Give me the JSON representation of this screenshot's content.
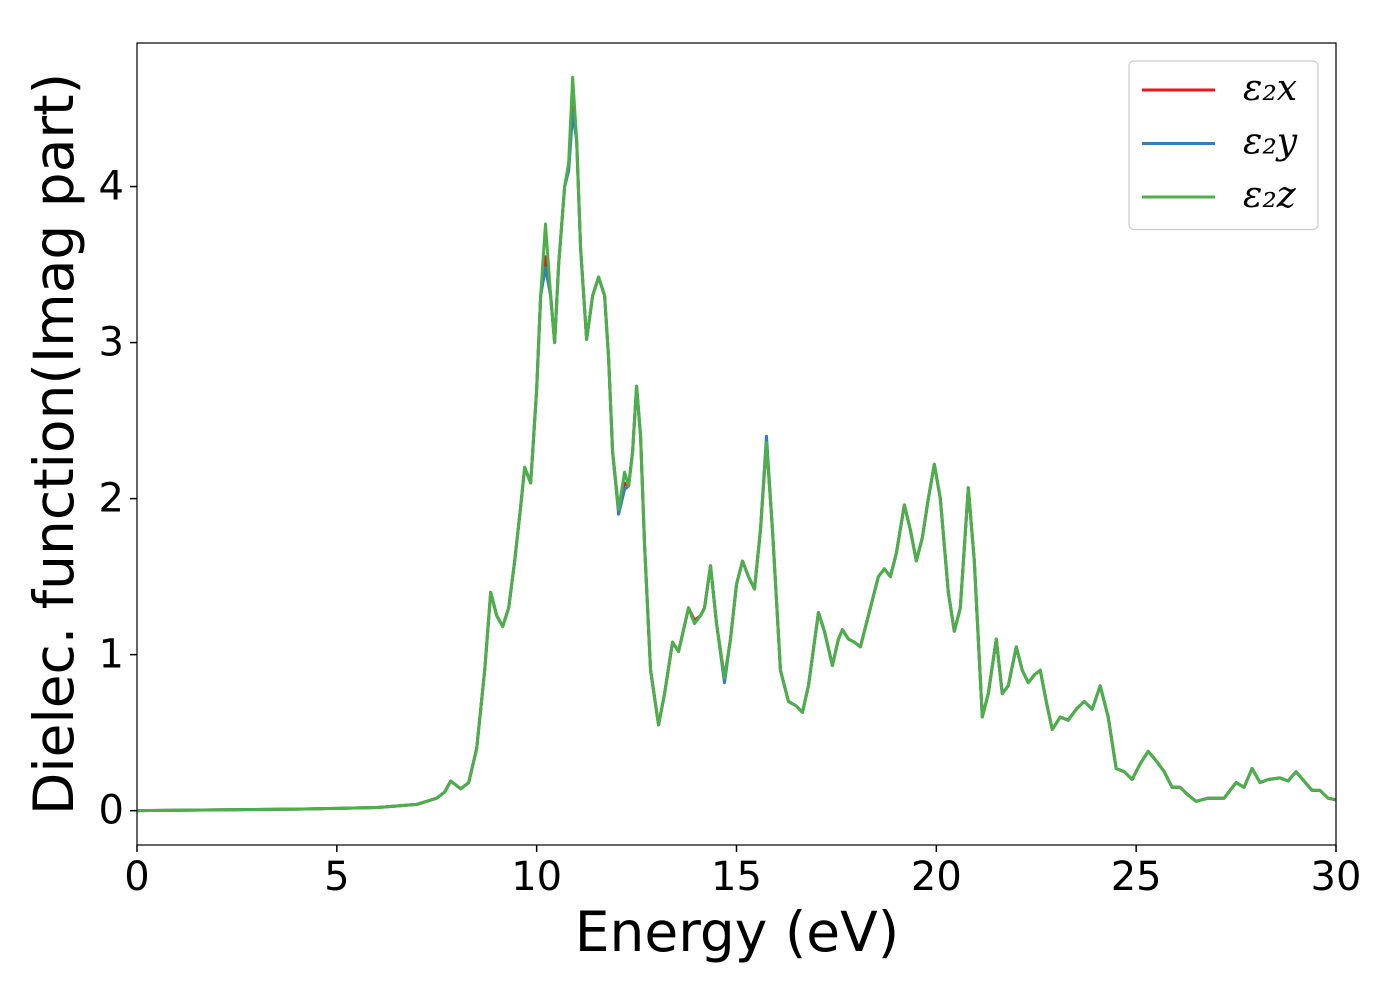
{
  "chart_data": {
    "type": "line",
    "xlabel": "Energy (eV)",
    "ylabel": "Dielec. function(Imag part)",
    "xlim": [
      0,
      30
    ],
    "ylim": [
      -0.22,
      4.92
    ],
    "xticks": [
      0,
      5,
      10,
      15,
      20,
      25,
      30
    ],
    "yticks": [
      0,
      1,
      2,
      3,
      4
    ],
    "grid": false,
    "legend": "upper right",
    "x": [
      0,
      2,
      4,
      5,
      6,
      6.5,
      7,
      7.5,
      7.7,
      7.85,
      8,
      8.1,
      8.3,
      8.5,
      8.7,
      8.85,
      9,
      9.15,
      9.3,
      9.45,
      9.6,
      9.7,
      9.85,
      10,
      10.1,
      10.22,
      10.35,
      10.45,
      10.55,
      10.7,
      10.8,
      10.9,
      11,
      11.1,
      11.25,
      11.4,
      11.55,
      11.7,
      11.8,
      11.9,
      12.05,
      12.2,
      12.3,
      12.4,
      12.5,
      12.6,
      12.7,
      12.85,
      13.05,
      13.2,
      13.4,
      13.55,
      13.8,
      13.95,
      14.1,
      14.2,
      14.35,
      14.5,
      14.7,
      14.85,
      15,
      15.15,
      15.3,
      15.45,
      15.6,
      15.75,
      15.9,
      16.1,
      16.3,
      16.5,
      16.65,
      16.8,
      17.05,
      17.2,
      17.4,
      17.55,
      17.65,
      17.8,
      17.95,
      18.1,
      18.3,
      18.55,
      18.7,
      18.85,
      19,
      19.2,
      19.35,
      19.5,
      19.65,
      19.8,
      19.95,
      20.1,
      20.3,
      20.45,
      20.6,
      20.8,
      20.95,
      21.15,
      21.3,
      21.5,
      21.65,
      21.8,
      22,
      22.15,
      22.3,
      22.45,
      22.6,
      22.75,
      22.9,
      23.1,
      23.3,
      23.5,
      23.7,
      23.9,
      24.1,
      24.3,
      24.5,
      24.7,
      24.9,
      25.1,
      25.3,
      25.5,
      25.7,
      25.9,
      26.1,
      26.3,
      26.5,
      26.8,
      27.2,
      27.5,
      27.7,
      27.9,
      28.1,
      28.3,
      28.6,
      28.8,
      29,
      29.2,
      29.4,
      29.6,
      29.8,
      30
    ],
    "series": [
      {
        "name": "ε₂x",
        "color": "#e41a1c",
        "values": [
          0,
          0.005,
          0.01,
          0.015,
          0.02,
          0.03,
          0.04,
          0.08,
          0.12,
          0.19,
          0.16,
          0.14,
          0.18,
          0.4,
          0.9,
          1.4,
          1.25,
          1.18,
          1.3,
          1.6,
          1.95,
          2.2,
          2.1,
          2.7,
          3.3,
          3.55,
          3.3,
          3.0,
          3.5,
          4.0,
          4.12,
          4.52,
          4.3,
          3.6,
          3.02,
          3.3,
          3.42,
          3.3,
          2.9,
          2.3,
          1.93,
          2.1,
          2.08,
          2.3,
          2.72,
          2.4,
          1.7,
          0.9,
          0.55,
          0.75,
          1.08,
          1.02,
          1.3,
          1.22,
          1.25,
          1.3,
          1.57,
          1.2,
          0.85,
          1.1,
          1.45,
          1.6,
          1.5,
          1.42,
          1.8,
          2.36,
          1.8,
          0.9,
          0.7,
          0.67,
          0.63,
          0.8,
          1.27,
          1.15,
          0.93,
          1.1,
          1.16,
          1.1,
          1.08,
          1.05,
          1.25,
          1.5,
          1.55,
          1.5,
          1.65,
          1.96,
          1.8,
          1.6,
          1.75,
          2.0,
          2.22,
          2.0,
          1.4,
          1.15,
          1.3,
          2.07,
          1.6,
          0.6,
          0.75,
          1.1,
          0.75,
          0.8,
          1.05,
          0.9,
          0.82,
          0.87,
          0.9,
          0.7,
          0.52,
          0.6,
          0.58,
          0.65,
          0.7,
          0.65,
          0.8,
          0.6,
          0.27,
          0.25,
          0.2,
          0.3,
          0.38,
          0.32,
          0.25,
          0.15,
          0.15,
          0.1,
          0.06,
          0.08,
          0.08,
          0.18,
          0.15,
          0.27,
          0.18,
          0.2,
          0.21,
          0.19,
          0.25,
          0.19,
          0.13,
          0.13,
          0.08,
          0.07
        ]
      },
      {
        "name": "ε₂y",
        "color": "#377eb8",
        "values": [
          0,
          0.005,
          0.01,
          0.015,
          0.02,
          0.03,
          0.04,
          0.08,
          0.12,
          0.19,
          0.16,
          0.14,
          0.18,
          0.4,
          0.9,
          1.4,
          1.25,
          1.18,
          1.3,
          1.6,
          1.95,
          2.2,
          2.1,
          2.7,
          3.3,
          3.48,
          3.3,
          3.0,
          3.5,
          4.0,
          4.1,
          4.47,
          4.3,
          3.6,
          3.02,
          3.3,
          3.42,
          3.3,
          2.9,
          2.3,
          1.9,
          2.06,
          2.08,
          2.3,
          2.72,
          2.4,
          1.7,
          0.9,
          0.55,
          0.75,
          1.08,
          1.02,
          1.3,
          1.2,
          1.25,
          1.3,
          1.57,
          1.2,
          0.82,
          1.1,
          1.45,
          1.6,
          1.5,
          1.42,
          1.8,
          2.4,
          1.8,
          0.9,
          0.7,
          0.67,
          0.63,
          0.8,
          1.27,
          1.15,
          0.93,
          1.1,
          1.16,
          1.1,
          1.08,
          1.05,
          1.25,
          1.5,
          1.55,
          1.5,
          1.65,
          1.96,
          1.8,
          1.6,
          1.75,
          2.0,
          2.22,
          2.0,
          1.4,
          1.15,
          1.3,
          2.07,
          1.6,
          0.6,
          0.75,
          1.1,
          0.75,
          0.8,
          1.05,
          0.9,
          0.82,
          0.87,
          0.9,
          0.7,
          0.52,
          0.6,
          0.58,
          0.65,
          0.7,
          0.65,
          0.8,
          0.6,
          0.27,
          0.25,
          0.2,
          0.3,
          0.38,
          0.32,
          0.25,
          0.15,
          0.15,
          0.1,
          0.06,
          0.08,
          0.08,
          0.18,
          0.15,
          0.27,
          0.18,
          0.2,
          0.21,
          0.19,
          0.25,
          0.19,
          0.13,
          0.13,
          0.08,
          0.07
        ]
      },
      {
        "name": "ε₂z",
        "color": "#4daf4a",
        "values": [
          0,
          0.005,
          0.01,
          0.015,
          0.02,
          0.03,
          0.04,
          0.08,
          0.12,
          0.19,
          0.16,
          0.14,
          0.18,
          0.4,
          0.9,
          1.4,
          1.25,
          1.18,
          1.3,
          1.6,
          1.95,
          2.2,
          2.1,
          2.7,
          3.3,
          3.76,
          3.3,
          3.0,
          3.5,
          4.0,
          4.15,
          4.7,
          4.3,
          3.6,
          3.02,
          3.3,
          3.42,
          3.3,
          2.9,
          2.3,
          1.93,
          2.17,
          2.08,
          2.3,
          2.72,
          2.4,
          1.7,
          0.9,
          0.55,
          0.75,
          1.08,
          1.02,
          1.3,
          1.2,
          1.25,
          1.3,
          1.57,
          1.2,
          0.85,
          1.1,
          1.45,
          1.6,
          1.5,
          1.42,
          1.8,
          2.36,
          1.8,
          0.9,
          0.7,
          0.67,
          0.63,
          0.8,
          1.27,
          1.15,
          0.93,
          1.1,
          1.16,
          1.1,
          1.08,
          1.05,
          1.25,
          1.5,
          1.55,
          1.5,
          1.65,
          1.96,
          1.8,
          1.6,
          1.75,
          2.0,
          2.22,
          2.0,
          1.4,
          1.15,
          1.3,
          2.07,
          1.6,
          0.6,
          0.75,
          1.1,
          0.75,
          0.8,
          1.05,
          0.9,
          0.82,
          0.87,
          0.9,
          0.7,
          0.52,
          0.6,
          0.58,
          0.65,
          0.7,
          0.65,
          0.8,
          0.6,
          0.27,
          0.25,
          0.2,
          0.3,
          0.38,
          0.32,
          0.25,
          0.15,
          0.15,
          0.1,
          0.06,
          0.08,
          0.08,
          0.18,
          0.15,
          0.27,
          0.18,
          0.2,
          0.21,
          0.19,
          0.25,
          0.19,
          0.13,
          0.13,
          0.08,
          0.07
        ]
      }
    ]
  }
}
